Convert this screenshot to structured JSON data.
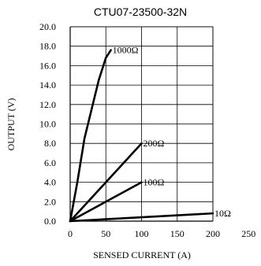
{
  "chart_data": {
    "type": "line",
    "title": "CTU07-23500-32N",
    "xlabel": "SENSED CURRENT (A)",
    "ylabel": "OUTPUT (V)",
    "xlim": [
      0,
      250
    ],
    "ylim": [
      0,
      20
    ],
    "x_ticks": [
      "0",
      "50",
      "100",
      "150",
      "200",
      "250"
    ],
    "y_ticks": [
      "0.0",
      "2.0",
      "4.0",
      "6.0",
      "8.0",
      "10.0",
      "12.0",
      "14.0",
      "16.0",
      "18.0",
      "20.0"
    ],
    "grid": true,
    "series": [
      {
        "name": "1000Ω",
        "points": [
          [
            0,
            0
          ],
          [
            10,
            4
          ],
          [
            20,
            8.5
          ],
          [
            30,
            11.5
          ],
          [
            40,
            14.5
          ],
          [
            50,
            16.8
          ],
          [
            57,
            17.6
          ]
        ]
      },
      {
        "name": "200Ω",
        "points": [
          [
            0,
            0
          ],
          [
            100,
            8
          ]
        ]
      },
      {
        "name": "100Ω",
        "points": [
          [
            0,
            0
          ],
          [
            100,
            4
          ]
        ]
      },
      {
        "name": "10Ω",
        "points": [
          [
            0,
            0
          ],
          [
            200,
            0.8
          ]
        ]
      }
    ],
    "colors": {
      "line": "#000000",
      "grid": "#000000",
      "background": "#ffffff"
    }
  }
}
